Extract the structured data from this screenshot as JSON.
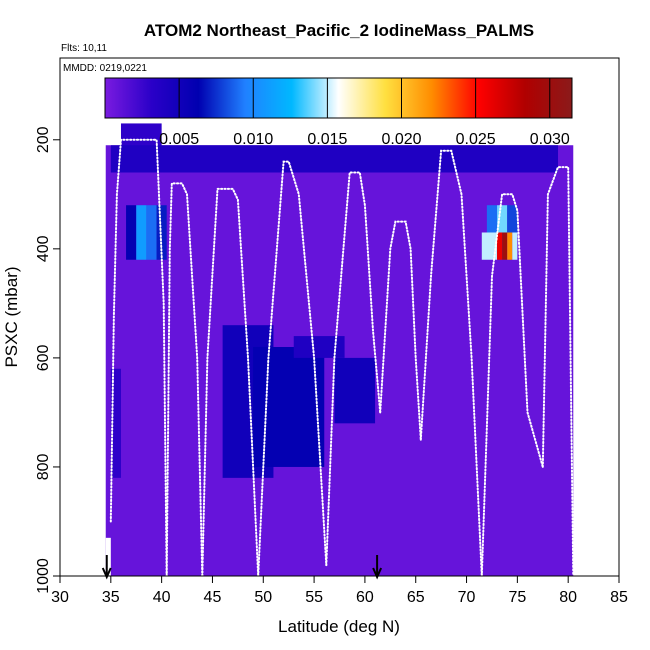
{
  "chart_data": {
    "type": "heatmap",
    "title": "ATOM2 Northeast_Pacific_2 IodineMass_PALMS",
    "flights_label": "Flts: 10,11",
    "date_label": "MMDD: 0219,0221",
    "xlabel": "Latitude (deg N)",
    "ylabel": "PSXC (mbar)",
    "xlim": [
      30,
      85
    ],
    "ylim": [
      1000,
      50
    ],
    "x_ticks": [
      30,
      35,
      40,
      45,
      50,
      55,
      60,
      65,
      70,
      75,
      80,
      85
    ],
    "y_ticks": [
      200,
      400,
      600,
      800,
      1000
    ],
    "colorbar": {
      "min": 0.0,
      "max": 0.0315,
      "ticks": [
        0.005,
        0.01,
        0.015,
        0.02,
        0.025,
        0.03
      ],
      "tick_labels": [
        "0.005",
        "0.010",
        "0.015",
        "0.020",
        "0.025",
        "0.030"
      ],
      "colors": [
        "#7a1be0",
        "#2a00c8",
        "#0000b0",
        "#2080ff",
        "#00b8ff",
        "#ffffff",
        "#ffe040",
        "#ff8c00",
        "#ff0000",
        "#b00000",
        "#8b1a1a"
      ]
    },
    "profile_flight_level_color": "#ffffff",
    "arrow_latitudes": [
      34.6,
      61.2
    ],
    "cells": [
      {
        "lat0": 34.5,
        "lat1": 80.5,
        "p0": 210,
        "p1": 1000,
        "value": 0.0008
      },
      {
        "lat0": 36.0,
        "lat1": 40.0,
        "p0": 170,
        "p1": 240,
        "value": 0.003
      },
      {
        "lat0": 35.0,
        "lat1": 79.0,
        "p0": 210,
        "p1": 260,
        "value": 0.004
      },
      {
        "lat0": 36.5,
        "lat1": 37.5,
        "p0": 320,
        "p1": 420,
        "value": 0.006
      },
      {
        "lat0": 37.5,
        "lat1": 38.5,
        "p0": 320,
        "p1": 420,
        "value": 0.011
      },
      {
        "lat0": 38.5,
        "lat1": 39.5,
        "p0": 320,
        "p1": 420,
        "value": 0.009
      },
      {
        "lat0": 39.5,
        "lat1": 40.5,
        "p0": 320,
        "p1": 420,
        "value": 0.007
      },
      {
        "lat0": 73.0,
        "lat1": 74.0,
        "p0": 320,
        "p1": 370,
        "value": 0.014
      },
      {
        "lat0": 72.0,
        "lat1": 73.0,
        "p0": 320,
        "p1": 370,
        "value": 0.009
      },
      {
        "lat0": 74.0,
        "lat1": 75.0,
        "p0": 320,
        "p1": 370,
        "value": 0.008
      },
      {
        "lat0": 71.5,
        "lat1": 73.0,
        "p0": 370,
        "p1": 420,
        "value": 0.015
      },
      {
        "lat0": 73.0,
        "lat1": 73.5,
        "p0": 370,
        "p1": 420,
        "value": 0.026
      },
      {
        "lat0": 73.5,
        "lat1": 74.0,
        "p0": 370,
        "p1": 420,
        "value": 0.03
      },
      {
        "lat0": 74.0,
        "lat1": 74.5,
        "p0": 370,
        "p1": 420,
        "value": 0.022
      },
      {
        "lat0": 74.5,
        "lat1": 75.0,
        "p0": 370,
        "p1": 420,
        "value": 0.015
      },
      {
        "lat0": 46.0,
        "lat1": 51.0,
        "p0": 540,
        "p1": 820,
        "value": 0.005
      },
      {
        "lat0": 49.0,
        "lat1": 56.0,
        "p0": 580,
        "p1": 800,
        "value": 0.006
      },
      {
        "lat0": 57.0,
        "lat1": 61.0,
        "p0": 600,
        "p1": 720,
        "value": 0.005
      },
      {
        "lat0": 53.0,
        "lat1": 58.0,
        "p0": 560,
        "p1": 600,
        "value": 0.004
      },
      {
        "lat0": 35.0,
        "lat1": 36.0,
        "p0": 620,
        "p1": 820,
        "value": 0.003
      },
      {
        "lat0": 34.5,
        "lat1": 35.0,
        "p0": 930,
        "p1": 1000,
        "value": -1
      }
    ],
    "profiles": [
      {
        "lat": [
          35.0,
          35.3,
          35.6,
          36.0,
          38.5,
          39.5,
          40.2,
          40.5
        ],
        "p": [
          900,
          520,
          300,
          200,
          200,
          200,
          500,
          1000
        ]
      },
      {
        "lat": [
          40.5,
          40.8,
          41.0,
          42.0,
          42.5,
          43.5,
          44.0
        ],
        "p": [
          1000,
          400,
          280,
          280,
          300,
          600,
          1000
        ]
      },
      {
        "lat": [
          44.0,
          44.5,
          45.5,
          47.0,
          47.5,
          48.5,
          49.5
        ],
        "p": [
          1000,
          600,
          290,
          290,
          310,
          600,
          1000
        ]
      },
      {
        "lat": [
          49.5,
          50.5,
          52.0,
          52.5,
          53.5,
          55.0,
          56.2
        ],
        "p": [
          1000,
          600,
          240,
          240,
          300,
          600,
          980
        ]
      },
      {
        "lat": [
          56.2,
          57.0,
          58.5,
          59.5,
          60.0,
          60.8,
          61.5
        ],
        "p": [
          980,
          600,
          260,
          260,
          320,
          550,
          700
        ]
      },
      {
        "lat": [
          61.5,
          62.5,
          63.0,
          64.0,
          64.5,
          65.0,
          65.5
        ],
        "p": [
          700,
          400,
          350,
          350,
          400,
          600,
          750
        ]
      },
      {
        "lat": [
          65.5,
          66.5,
          67.5,
          68.5,
          69.5,
          70.5,
          71.5
        ],
        "p": [
          750,
          450,
          220,
          220,
          300,
          600,
          1000
        ]
      },
      {
        "lat": [
          71.5,
          72.5,
          73.5,
          74.5,
          75.0,
          76.0,
          77.5
        ],
        "p": [
          1000,
          450,
          300,
          300,
          330,
          700,
          800
        ]
      },
      {
        "lat": [
          77.5,
          78.0,
          79.0,
          80.0,
          80.5
        ],
        "p": [
          800,
          300,
          250,
          250,
          1000
        ]
      }
    ]
  }
}
